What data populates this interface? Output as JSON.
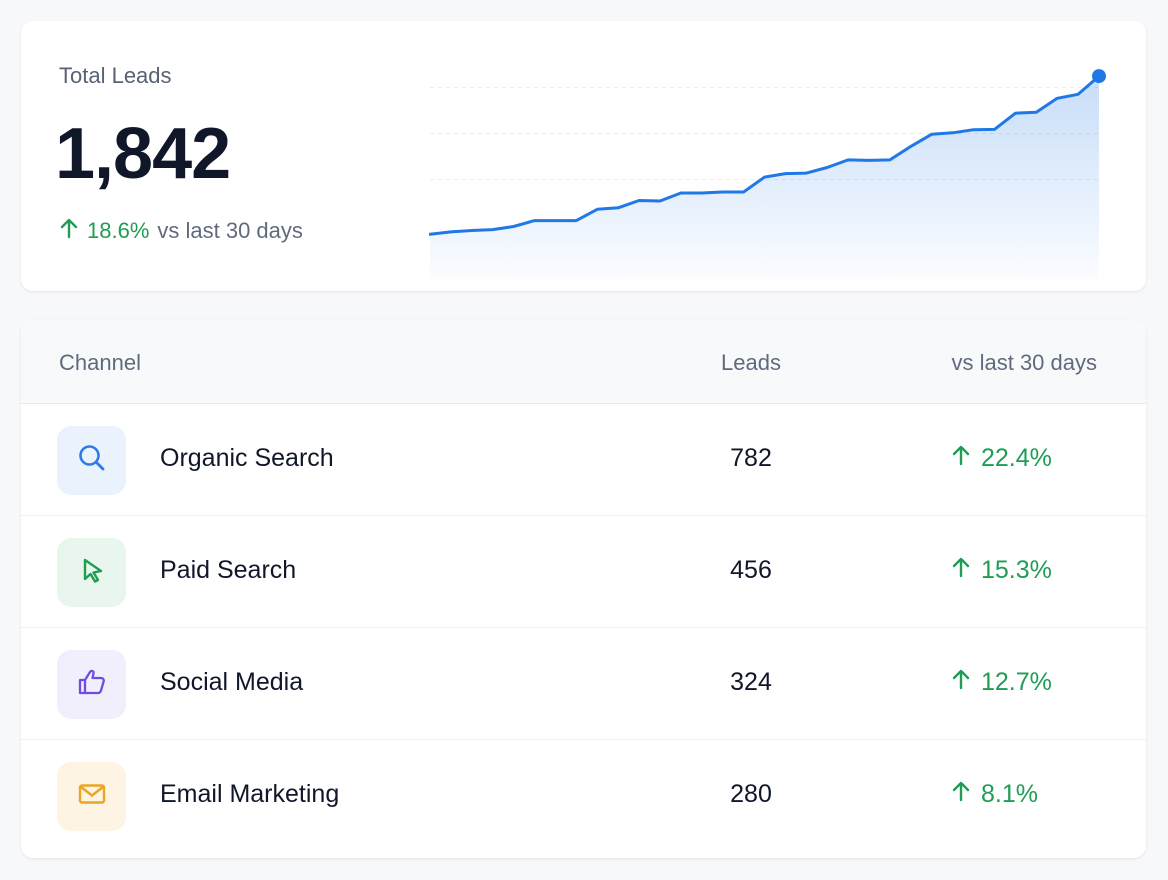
{
  "summary": {
    "label": "Total Leads",
    "total": "1,842",
    "change": "18.6%",
    "change_suffix": "vs last 30 days",
    "trend_direction": "up"
  },
  "chart_data": {
    "type": "area",
    "values": [
      2,
      3,
      3.6,
      4,
      5.3,
      7.8,
      7.8,
      7.8,
      12.6,
      13.2,
      16.3,
      16.1,
      19.5,
      19.5,
      19.9,
      19.9,
      26.2,
      27.7,
      27.9,
      30.3,
      33.5,
      33.3,
      33.5,
      39.2,
      44.4,
      45,
      46.3,
      46.4,
      53.3,
      53.7,
      59.6,
      61.3,
      69
    ],
    "accent": "#1f78e6",
    "grid": true
  },
  "table": {
    "headers": {
      "channel": "Channel",
      "leads": "Leads",
      "change": "vs last 30 days"
    },
    "rows": [
      {
        "icon": "search-icon",
        "channel": "Organic Search",
        "leads": "782",
        "change": "22.4%",
        "chip_bg": "#eaf2fe",
        "icon_color": "#2f7be5"
      },
      {
        "icon": "cursor-icon",
        "channel": "Paid Search",
        "leads": "456",
        "change": "15.3%",
        "chip_bg": "#e9f6ee",
        "icon_color": "#1f9d55"
      },
      {
        "icon": "thumbs-up-icon",
        "channel": "Social Media",
        "leads": "324",
        "change": "12.7%",
        "chip_bg": "#f1effc",
        "icon_color": "#6d4ee0"
      },
      {
        "icon": "mail-icon",
        "channel": "Email Marketing",
        "leads": "280",
        "change": "8.1%",
        "chip_bg": "#fdf4e4",
        "icon_color": "#e9a524"
      }
    ]
  },
  "colors": {
    "positive": "#1f9d55",
    "accent": "#1f78e6"
  }
}
